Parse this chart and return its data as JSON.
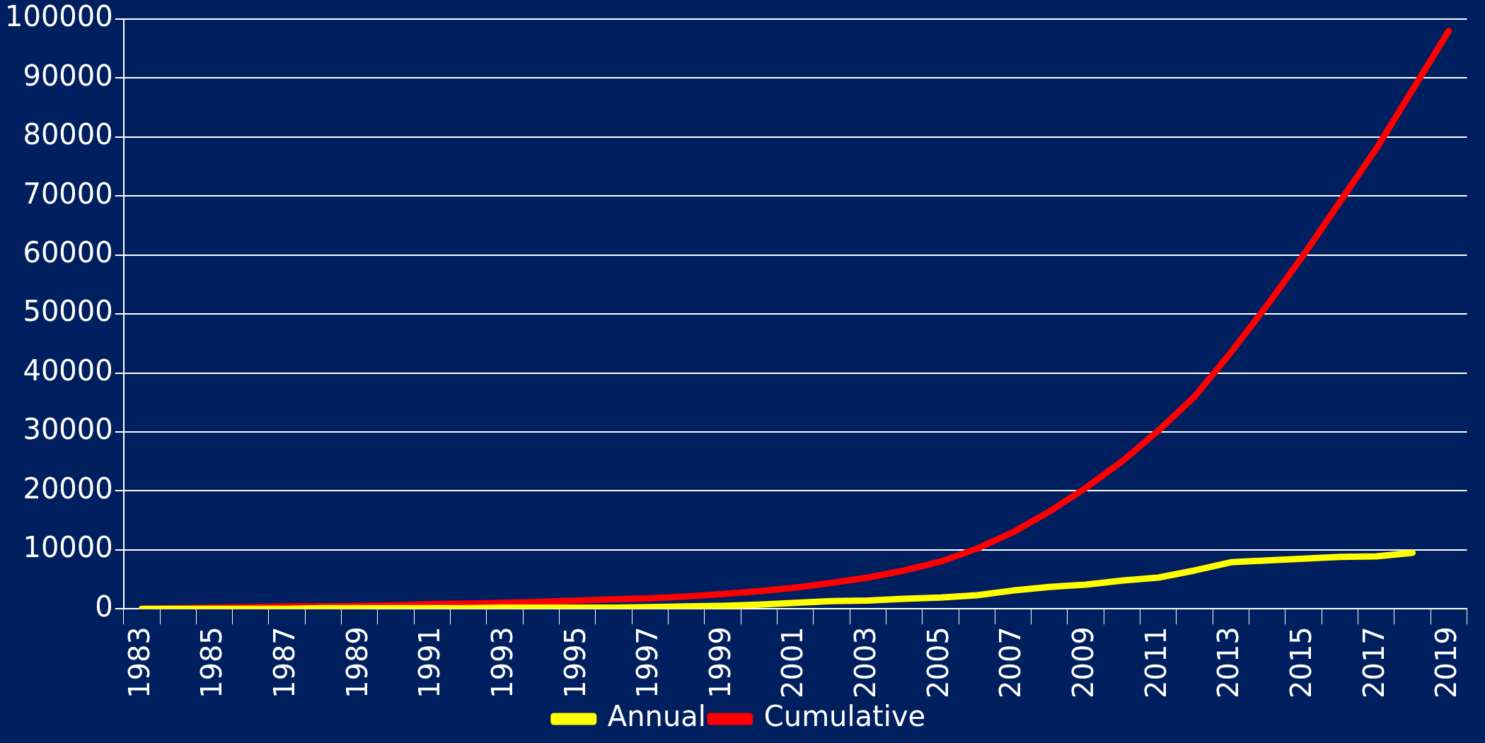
{
  "chart_data": {
    "type": "line",
    "categories": [
      "1983",
      null,
      "1985",
      null,
      "1987",
      null,
      "1989",
      null,
      "1991",
      null,
      "1993",
      null,
      "1995",
      null,
      "1997",
      null,
      "1999",
      null,
      "2001",
      null,
      "2003",
      null,
      "2005",
      null,
      "2007",
      null,
      "2009",
      null,
      "2011",
      null,
      "2013",
      null,
      "2015",
      null,
      "2017",
      null,
      "2019"
    ],
    "series": [
      {
        "name": "Annual",
        "color": "#ffff00",
        "values": [
          0,
          0,
          0,
          0,
          0,
          100,
          100,
          100,
          100,
          100,
          200,
          200,
          200,
          200,
          300,
          400,
          500,
          700,
          1000,
          1300,
          1400,
          1700,
          1900,
          2300,
          3100,
          3700,
          4100,
          4800,
          5300,
          6500,
          7900,
          8200,
          8500,
          8800,
          8900,
          9500,
          null
        ]
      },
      {
        "name": "Cumulative",
        "color": "#ff0000",
        "values": [
          0,
          100,
          200,
          300,
          400,
          400,
          500,
          600,
          800,
          900,
          1000,
          1200,
          1400,
          1600,
          1800,
          2100,
          2500,
          3000,
          3600,
          4400,
          5300,
          6500,
          8000,
          10200,
          13000,
          16500,
          20500,
          25000,
          30200,
          36000,
          43500,
          51500,
          60000,
          69000,
          78000,
          88000,
          98000
        ]
      }
    ],
    "ylim": [
      0,
      100000
    ],
    "yticks": [
      0,
      10000,
      20000,
      30000,
      40000,
      50000,
      60000,
      70000,
      80000,
      90000,
      100000
    ],
    "grid": "y",
    "legend": "bottom",
    "marker": "none",
    "line_style": "solid"
  }
}
